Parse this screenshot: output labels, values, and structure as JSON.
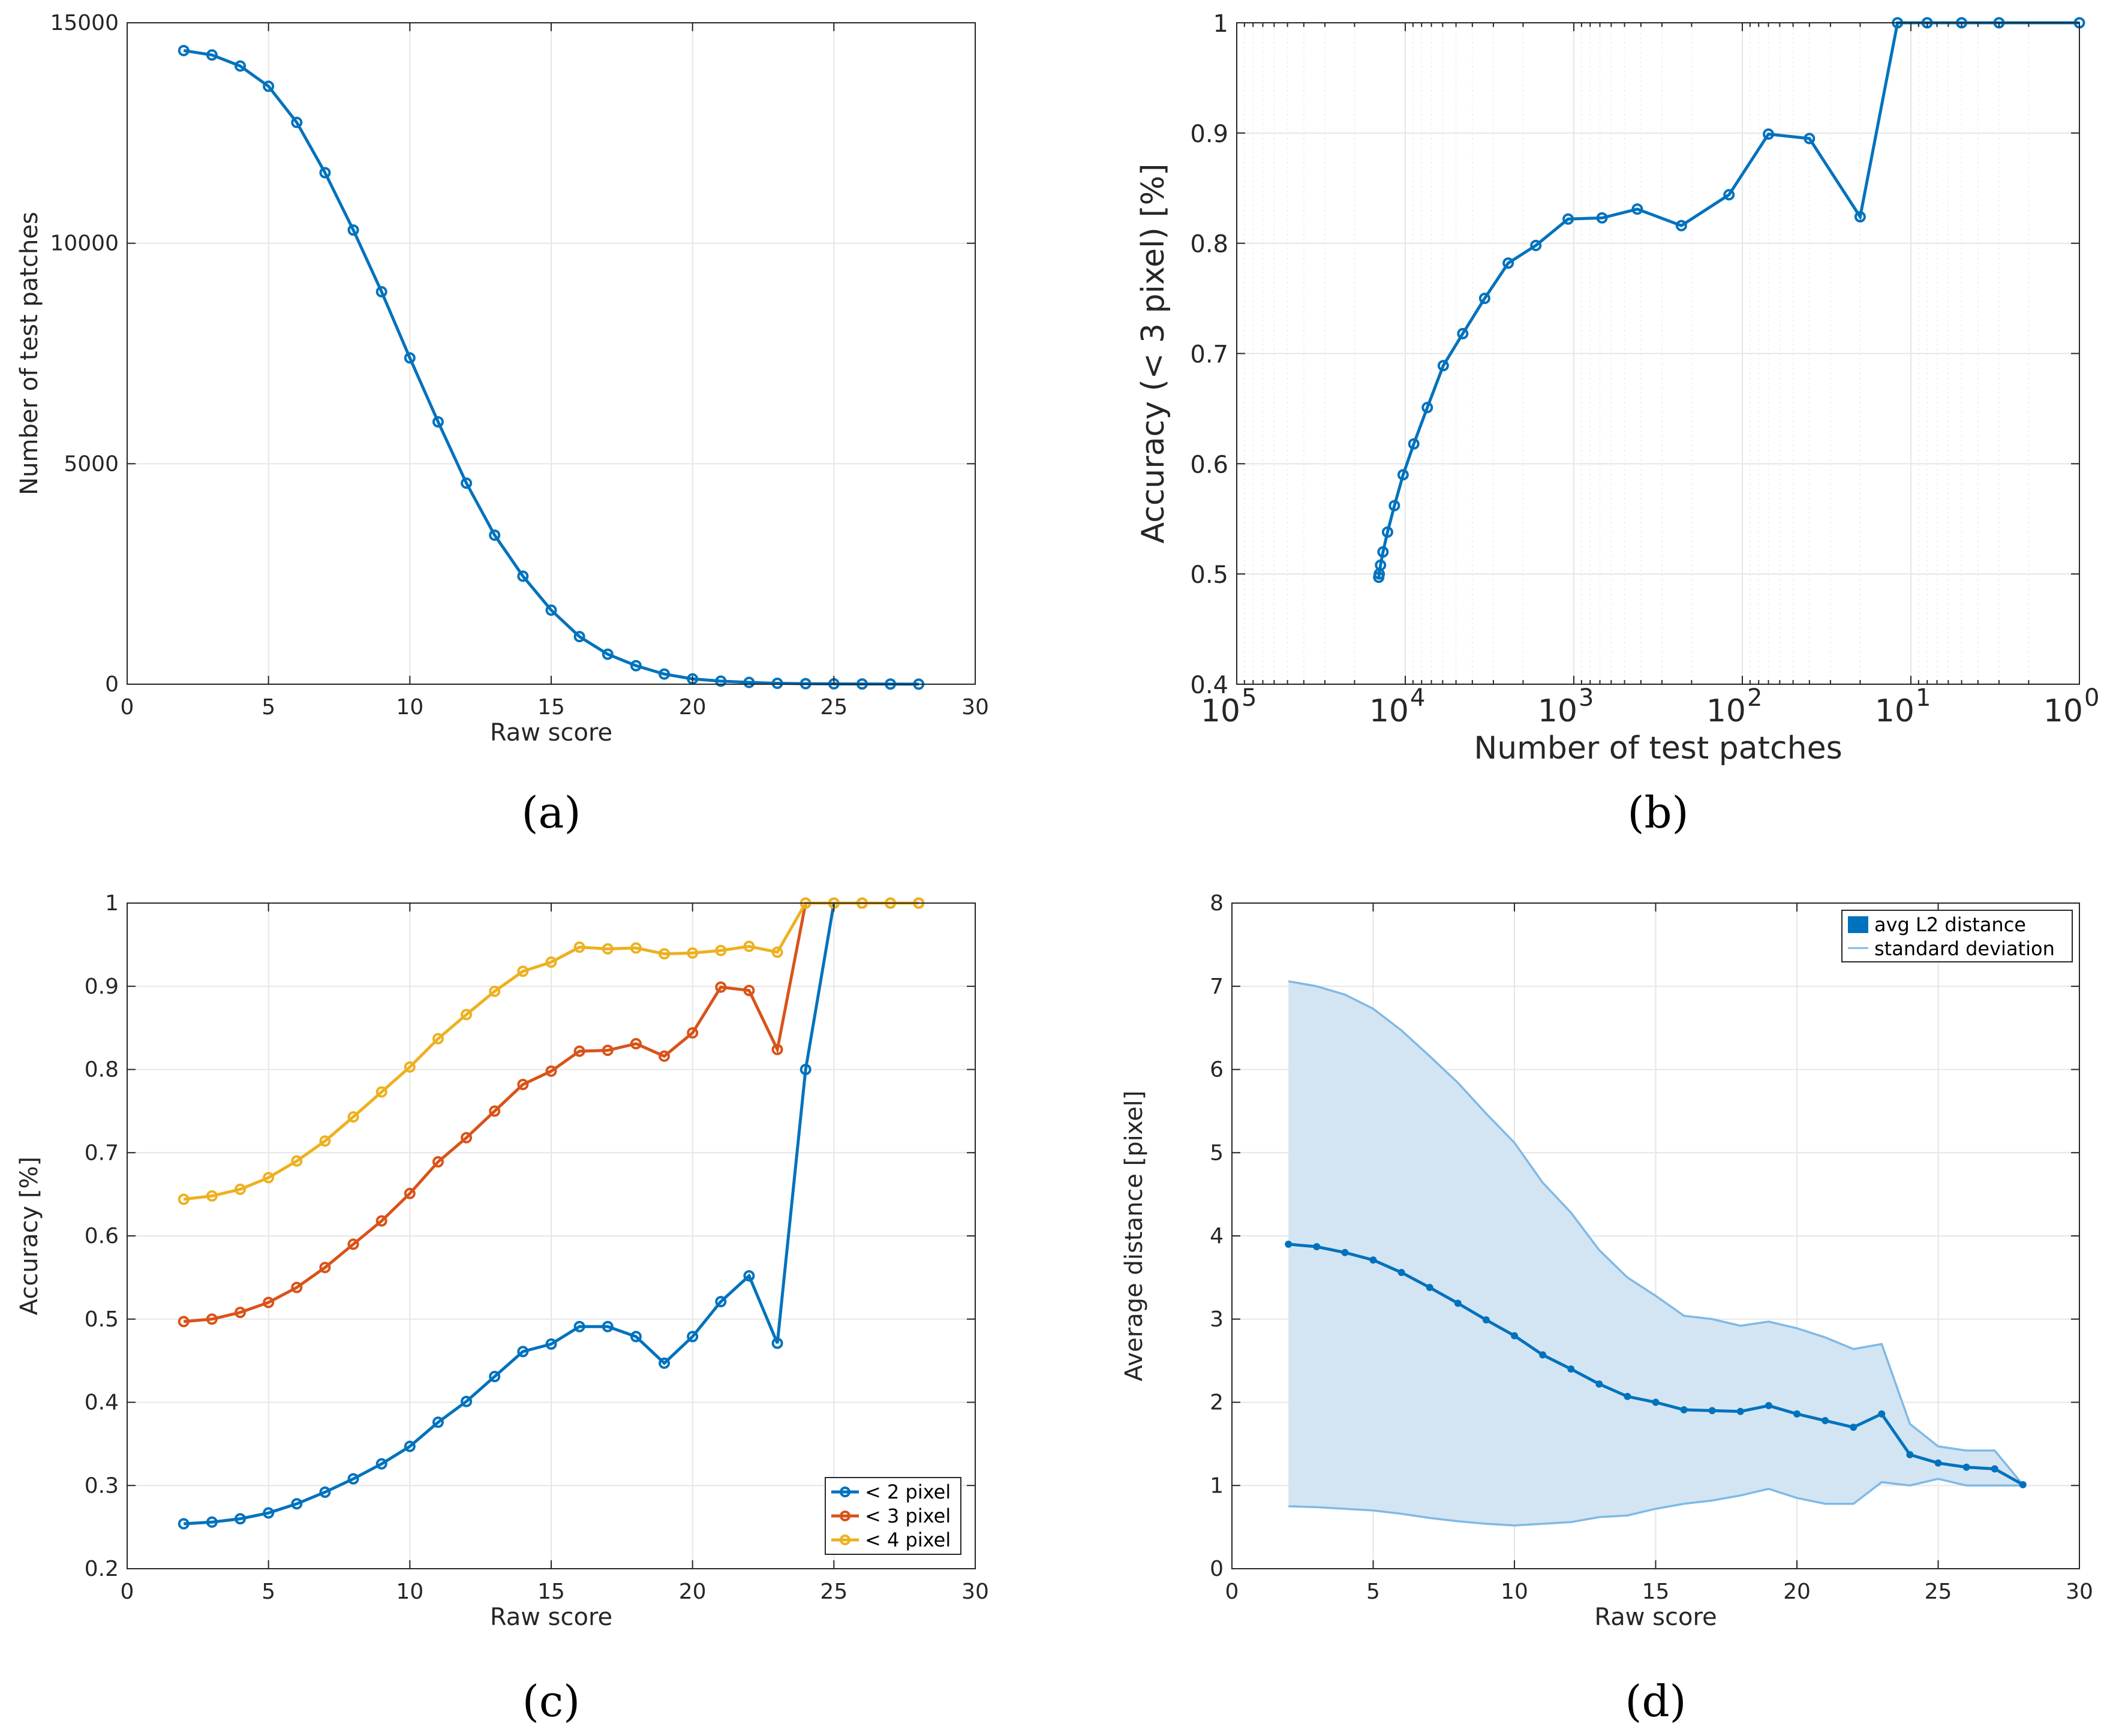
{
  "chart_data": [
    {
      "type": "line",
      "caption": "(a)",
      "xlabel": "Raw score",
      "ylabel": "Number of test patches",
      "xlim": [
        0,
        30
      ],
      "ylim": [
        0,
        15000
      ],
      "xticks": [
        "0",
        "5",
        "10",
        "15",
        "20",
        "25",
        "30"
      ],
      "yticks": [
        "0",
        "5000",
        "10000",
        "15000"
      ],
      "grid": true,
      "series": [
        {
          "name": "test patches",
          "color": "#0072BD",
          "x": [
            2,
            3,
            4,
            5,
            6,
            7,
            8,
            9,
            10,
            11,
            12,
            13,
            14,
            15,
            16,
            17,
            18,
            19,
            20,
            21,
            22,
            23,
            24,
            25,
            26,
            27,
            28
          ],
          "y": [
            14370,
            14270,
            14020,
            13560,
            12740,
            11600,
            10300,
            8900,
            7400,
            5950,
            4560,
            3380,
            2450,
            1680,
            1080,
            680,
            420,
            230,
            120,
            70,
            40,
            20,
            12,
            8,
            5,
            3,
            1
          ]
        }
      ]
    },
    {
      "type": "line",
      "caption": "(b)",
      "xlabel": "Number of test patches",
      "ylabel": "Accuracy (< 3 pixel) [%]",
      "xscale": "log-reversed",
      "xlim": [
        100000,
        1
      ],
      "ylim": [
        0.4,
        1
      ],
      "xticks": [
        {
          "base": "10",
          "exp": "5"
        },
        {
          "base": "10",
          "exp": "4"
        },
        {
          "base": "10",
          "exp": "3"
        },
        {
          "base": "10",
          "exp": "2"
        },
        {
          "base": "10",
          "exp": "1"
        },
        {
          "base": "10",
          "exp": "0"
        }
      ],
      "yticks": [
        "0.4",
        "0.5",
        "0.6",
        "0.7",
        "0.8",
        "0.9",
        "1"
      ],
      "grid": true,
      "series": [
        {
          "name": "< 3 pixel",
          "color": "#0072BD",
          "x": [
            14370,
            14270,
            14020,
            13560,
            12740,
            11600,
            10300,
            8900,
            7400,
            5950,
            4560,
            3380,
            2450,
            1680,
            1080,
            680,
            420,
            230,
            120,
            70,
            40,
            20,
            12,
            8,
            5,
            3,
            1
          ],
          "y": [
            0.497,
            0.5,
            0.508,
            0.52,
            0.538,
            0.562,
            0.59,
            0.618,
            0.651,
            0.689,
            0.718,
            0.75,
            0.782,
            0.798,
            0.822,
            0.823,
            0.831,
            0.816,
            0.844,
            0.899,
            0.895,
            0.824,
            1,
            1,
            1,
            1,
            1
          ]
        }
      ]
    },
    {
      "type": "line",
      "caption": "(c)",
      "xlabel": "Raw score",
      "ylabel": "Accuracy [%]",
      "xlim": [
        0,
        30
      ],
      "ylim": [
        0.2,
        1
      ],
      "xticks": [
        "0",
        "5",
        "10",
        "15",
        "20",
        "25",
        "30"
      ],
      "yticks": [
        "0.2",
        "0.3",
        "0.4",
        "0.5",
        "0.6",
        "0.7",
        "0.8",
        "0.9",
        "1"
      ],
      "grid": true,
      "legend_position": "bottom-right",
      "series": [
        {
          "name": "< 2 pixel",
          "color": "#0072BD",
          "x": [
            2,
            3,
            4,
            5,
            6,
            7,
            8,
            9,
            10,
            11,
            12,
            13,
            14,
            15,
            16,
            17,
            18,
            19,
            20,
            21,
            22,
            23,
            24,
            25,
            26,
            27,
            28
          ],
          "y": [
            0.254,
            0.256,
            0.26,
            0.267,
            0.278,
            0.292,
            0.308,
            0.326,
            0.347,
            0.376,
            0.401,
            0.431,
            0.461,
            0.47,
            0.491,
            0.491,
            0.479,
            0.447,
            0.479,
            0.521,
            0.552,
            0.471,
            0.8,
            1,
            1,
            1,
            1
          ]
        },
        {
          "name": "< 3 pixel",
          "color": "#D95319",
          "x": [
            2,
            3,
            4,
            5,
            6,
            7,
            8,
            9,
            10,
            11,
            12,
            13,
            14,
            15,
            16,
            17,
            18,
            19,
            20,
            21,
            22,
            23,
            24,
            25,
            26,
            27,
            28
          ],
          "y": [
            0.497,
            0.5,
            0.508,
            0.52,
            0.538,
            0.562,
            0.59,
            0.618,
            0.651,
            0.689,
            0.718,
            0.75,
            0.782,
            0.798,
            0.822,
            0.823,
            0.831,
            0.816,
            0.844,
            0.899,
            0.895,
            0.824,
            1,
            1,
            1,
            1,
            1
          ]
        },
        {
          "name": "< 4 pixel",
          "color": "#EDB120",
          "x": [
            2,
            3,
            4,
            5,
            6,
            7,
            8,
            9,
            10,
            11,
            12,
            13,
            14,
            15,
            16,
            17,
            18,
            19,
            20,
            21,
            22,
            23,
            24,
            25,
            26,
            27,
            28
          ],
          "y": [
            0.644,
            0.648,
            0.656,
            0.67,
            0.69,
            0.714,
            0.743,
            0.773,
            0.803,
            0.837,
            0.866,
            0.894,
            0.918,
            0.929,
            0.947,
            0.945,
            0.946,
            0.939,
            0.94,
            0.943,
            0.948,
            0.941,
            1,
            1,
            1,
            1,
            1
          ]
        }
      ]
    },
    {
      "type": "area",
      "caption": "(d)",
      "xlabel": "Raw score",
      "ylabel": "Average distance [pixel]",
      "xlim": [
        0,
        30
      ],
      "ylim": [
        0,
        8
      ],
      "xticks": [
        "0",
        "5",
        "10",
        "15",
        "20",
        "25",
        "30"
      ],
      "yticks": [
        "0",
        "1",
        "2",
        "3",
        "4",
        "5",
        "6",
        "7",
        "8"
      ],
      "grid": true,
      "legend_position": "top-right",
      "series": [
        {
          "name": "avg L2 distance",
          "color": "#0072BD",
          "x": [
            2,
            3,
            4,
            5,
            6,
            7,
            8,
            9,
            10,
            11,
            12,
            13,
            14,
            15,
            16,
            17,
            18,
            19,
            20,
            21,
            22,
            23,
            24,
            25,
            26,
            27,
            28
          ],
          "y": [
            3.9,
            3.87,
            3.8,
            3.71,
            3.56,
            3.38,
            3.19,
            2.99,
            2.8,
            2.57,
            2.4,
            2.22,
            2.07,
            2.0,
            1.91,
            1.9,
            1.89,
            1.96,
            1.86,
            1.78,
            1.7,
            1.86,
            1.37,
            1.27,
            1.22,
            1.2,
            1.01
          ]
        },
        {
          "name": "standard deviation",
          "color": "#7FB9E6",
          "fill": "#D3E5F3",
          "x": [
            2,
            3,
            4,
            5,
            6,
            7,
            8,
            9,
            10,
            11,
            12,
            13,
            14,
            15,
            16,
            17,
            18,
            19,
            20,
            21,
            22,
            23,
            24,
            25,
            26,
            27,
            28
          ],
          "upper": [
            7.06,
            7.0,
            6.9,
            6.73,
            6.47,
            6.16,
            5.84,
            5.47,
            5.12,
            4.64,
            4.28,
            3.83,
            3.5,
            3.28,
            3.04,
            3.0,
            2.92,
            2.97,
            2.89,
            2.78,
            2.64,
            2.7,
            1.74,
            1.47,
            1.42,
            1.42,
            1.01
          ],
          "lower": [
            0.75,
            0.74,
            0.72,
            0.7,
            0.66,
            0.61,
            0.57,
            0.54,
            0.52,
            0.54,
            0.56,
            0.62,
            0.64,
            0.72,
            0.78,
            0.82,
            0.88,
            0.96,
            0.85,
            0.78,
            0.78,
            1.04,
            1.0,
            1.08,
            1.0,
            1.0,
            1.0
          ]
        }
      ]
    }
  ]
}
